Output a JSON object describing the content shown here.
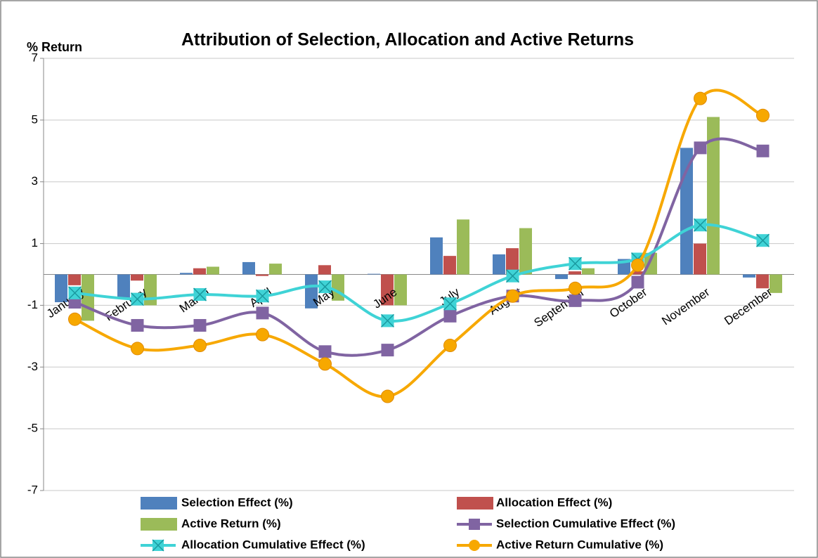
{
  "chart_data": {
    "type": "bar",
    "title": "Attribution of Selection, Allocation and Active Returns",
    "y_label": "% Return",
    "categories": [
      "January",
      "February",
      "March",
      "April",
      "May",
      "June",
      "July",
      "August",
      "September",
      "October",
      "November",
      "December"
    ],
    "ylim": [
      -7,
      7
    ],
    "yticks": [
      -7,
      -5,
      -3,
      -1,
      1,
      3,
      5,
      7
    ],
    "grid": true,
    "legend": "bottom",
    "series": [
      {
        "name": "Selection Effect (%)",
        "type": "bar",
        "color": "#4f81bd",
        "values": [
          -0.9,
          -0.75,
          0.05,
          0.4,
          -1.1,
          0.02,
          1.2,
          0.65,
          -0.15,
          0.5,
          4.1,
          -0.1
        ]
      },
      {
        "name": "Allocation Effect (%)",
        "type": "bar",
        "color": "#c0504d",
        "values": [
          -0.35,
          -0.2,
          0.2,
          -0.05,
          0.3,
          -1.0,
          0.6,
          0.85,
          0.1,
          0.1,
          1.0,
          -0.45
        ]
      },
      {
        "name": "Active Return (%)",
        "type": "bar",
        "color": "#9bbb59",
        "values": [
          -1.5,
          -1.0,
          0.25,
          0.35,
          -0.85,
          -1.0,
          1.78,
          1.5,
          0.2,
          0.7,
          5.1,
          -0.6
        ]
      },
      {
        "name": "Selection Cumulative Effect (%)",
        "type": "line",
        "marker": "square",
        "color": "#8064a2",
        "values": [
          -0.9,
          -1.65,
          -1.65,
          -1.25,
          -2.5,
          -2.45,
          -1.35,
          -0.7,
          -0.85,
          -0.25,
          4.1,
          4.0
        ]
      },
      {
        "name": "Allocation Cumulative Effect (%)",
        "type": "line",
        "marker": "square-x",
        "color": "#3fd3d6",
        "values": [
          -0.6,
          -0.8,
          -0.65,
          -0.7,
          -0.4,
          -1.5,
          -0.95,
          -0.05,
          0.35,
          0.5,
          1.6,
          1.1
        ]
      },
      {
        "name": "Active Return Cumulative (%)",
        "type": "line",
        "marker": "circle",
        "color": "#f7a800",
        "values": [
          -1.45,
          -2.4,
          -2.3,
          -1.95,
          -2.9,
          -3.95,
          -2.3,
          -0.7,
          -0.45,
          0.3,
          5.7,
          5.15
        ]
      }
    ]
  }
}
